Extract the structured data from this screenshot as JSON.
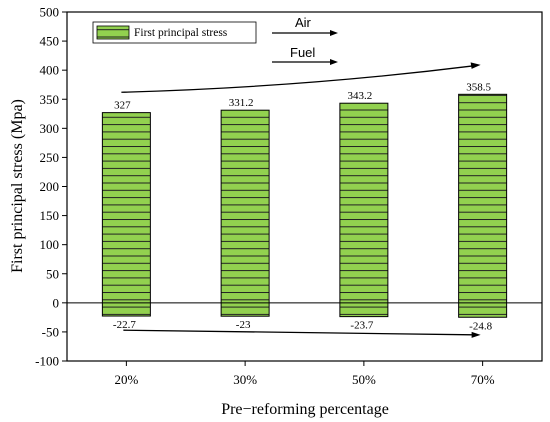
{
  "chart_data": {
    "type": "bar",
    "categories": [
      "20%",
      "30%",
      "50%",
      "70%"
    ],
    "series": [
      {
        "name": "First principal stress",
        "values": [
          327,
          331.2,
          343.2,
          358.5
        ],
        "color": "#92d14f",
        "pattern": "horizontal-hatch"
      }
    ],
    "negative_values": [
      -22.7,
      -23,
      -23.7,
      -24.8
    ],
    "positive_labels": [
      "327",
      "331.2",
      "343.2",
      "358.5"
    ],
    "negative_labels": [
      "-22.7",
      "-23",
      "-23.7",
      "-24.8"
    ],
    "xlabel": "Pre−reforming percentage",
    "ylabel": "First principal stress (Mpa)",
    "ylim": [
      -100,
      500
    ],
    "yticks": [
      "500",
      "450",
      "400",
      "350",
      "300",
      "250",
      "200",
      "150",
      "100",
      "50",
      "0",
      "-50",
      "-100"
    ],
    "yticks_values": [
      500,
      450,
      400,
      350,
      300,
      250,
      200,
      150,
      100,
      50,
      0,
      -50,
      -100
    ],
    "zero_line": true,
    "legend": {
      "label": "First principal stress",
      "placement": "top-left"
    },
    "annotations": [
      {
        "text": "Air",
        "kind": "arrow-right"
      },
      {
        "text": "Fuel",
        "kind": "arrow-right"
      }
    ],
    "trend_arrows": [
      {
        "from_value": 362,
        "to_value": 409,
        "direction": "up"
      },
      {
        "from_value": -47,
        "to_value": -55,
        "direction": "down"
      }
    ],
    "grid": false
  }
}
